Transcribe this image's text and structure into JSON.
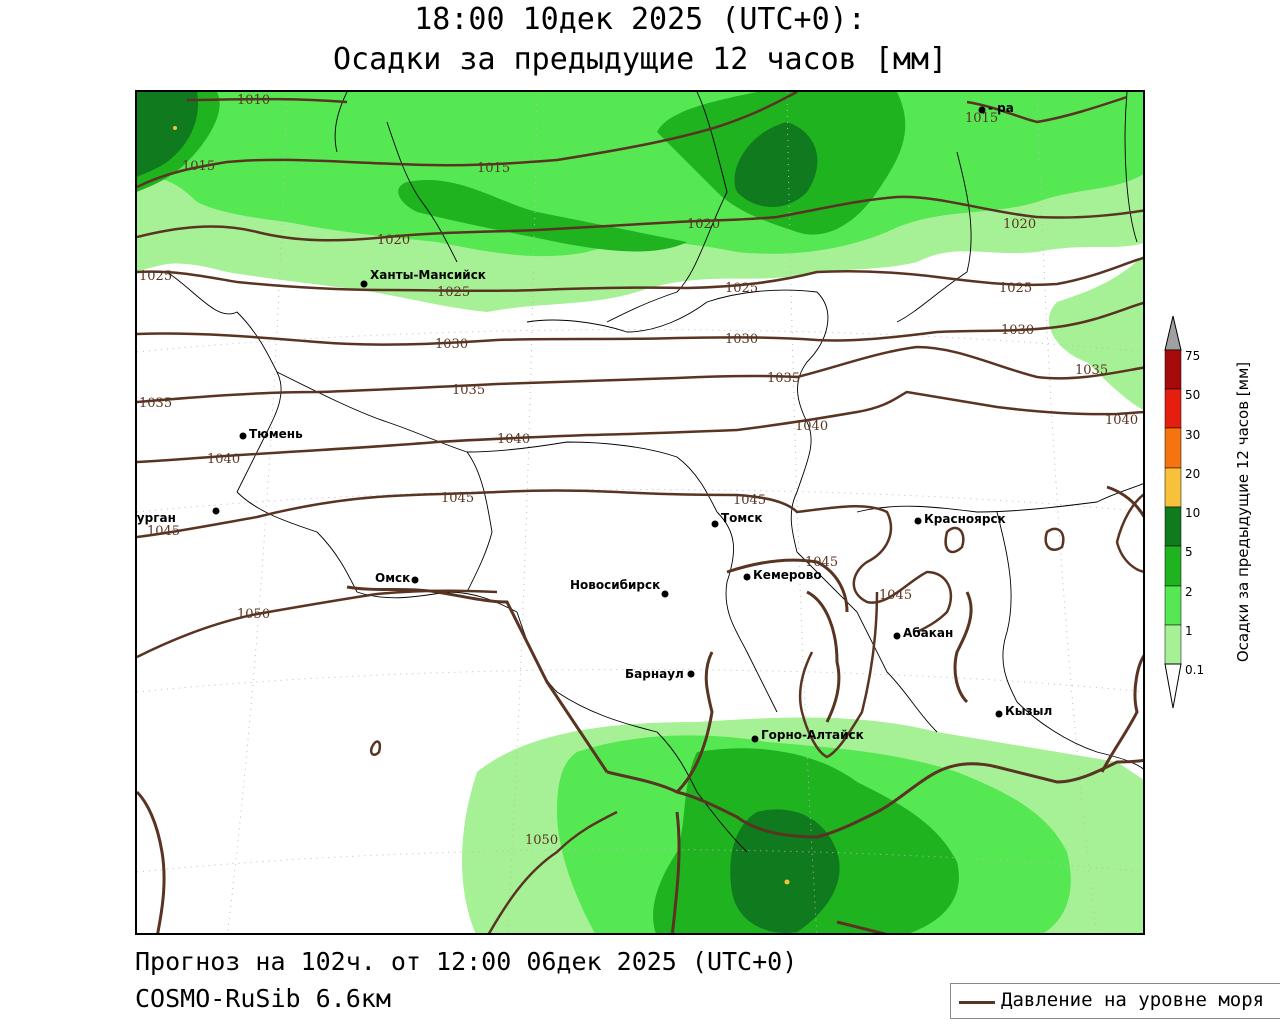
{
  "header": {
    "title_line1": "18:00 10дек 2025 (UTC+0):",
    "title_line2": "Осадки за предыдущие 12 часов [мм]"
  },
  "footer": {
    "forecast": "Прогноз на 102ч. от 12:00 06дек 2025 (UTC+0)",
    "model": "COSMO-RuSib 6.6км"
  },
  "legend": {
    "pressure_label": "Давление на уровне моря"
  },
  "colorbar": {
    "title": "Осадки за предыдущие 12 часов [мм]",
    "levels": [
      "0.1",
      "1",
      "2",
      "5",
      "10",
      "20",
      "30",
      "50",
      "75"
    ],
    "colors": {
      "under": "#ffffff",
      "c1": "#a6f095",
      "c2": "#55e852",
      "c3": "#1fb31f",
      "c4": "#0f7a1e",
      "c5": "#f7c13b",
      "c6": "#f77310",
      "c7": "#e51e0f",
      "c8": "#a70a0a",
      "over": "#a0a0a0"
    }
  },
  "map": {
    "colors": {
      "isobar": "#5a3422",
      "border": "#000000",
      "grid": "#bbbbbb"
    },
    "cities": [
      {
        "name": "Ханты-Мансийск"
      },
      {
        "name": "Тюмень"
      },
      {
        "name": "Курган"
      },
      {
        "name": "Омск"
      },
      {
        "name": "Новосибирск"
      },
      {
        "name": "Томск"
      },
      {
        "name": "Кемерово"
      },
      {
        "name": "Красноярск"
      },
      {
        "name": "Абакан"
      },
      {
        "name": "Барнаул"
      },
      {
        "name": "Горно-Алтайск"
      },
      {
        "name": "Кызыл"
      },
      {
        "name": "- ра"
      }
    ],
    "isobar_labels": [
      "1010",
      "1015",
      "1015",
      "1015",
      "1020",
      "1020",
      "1020",
      "1025",
      "1025",
      "1025",
      "1025",
      "1030",
      "1030",
      "1030",
      "1035",
      "1035",
      "1035",
      "1035",
      "1040",
      "1040",
      "1040",
      "1040",
      "1045",
      "1045",
      "1045",
      "1045",
      "1045",
      "1050",
      "1050"
    ]
  }
}
